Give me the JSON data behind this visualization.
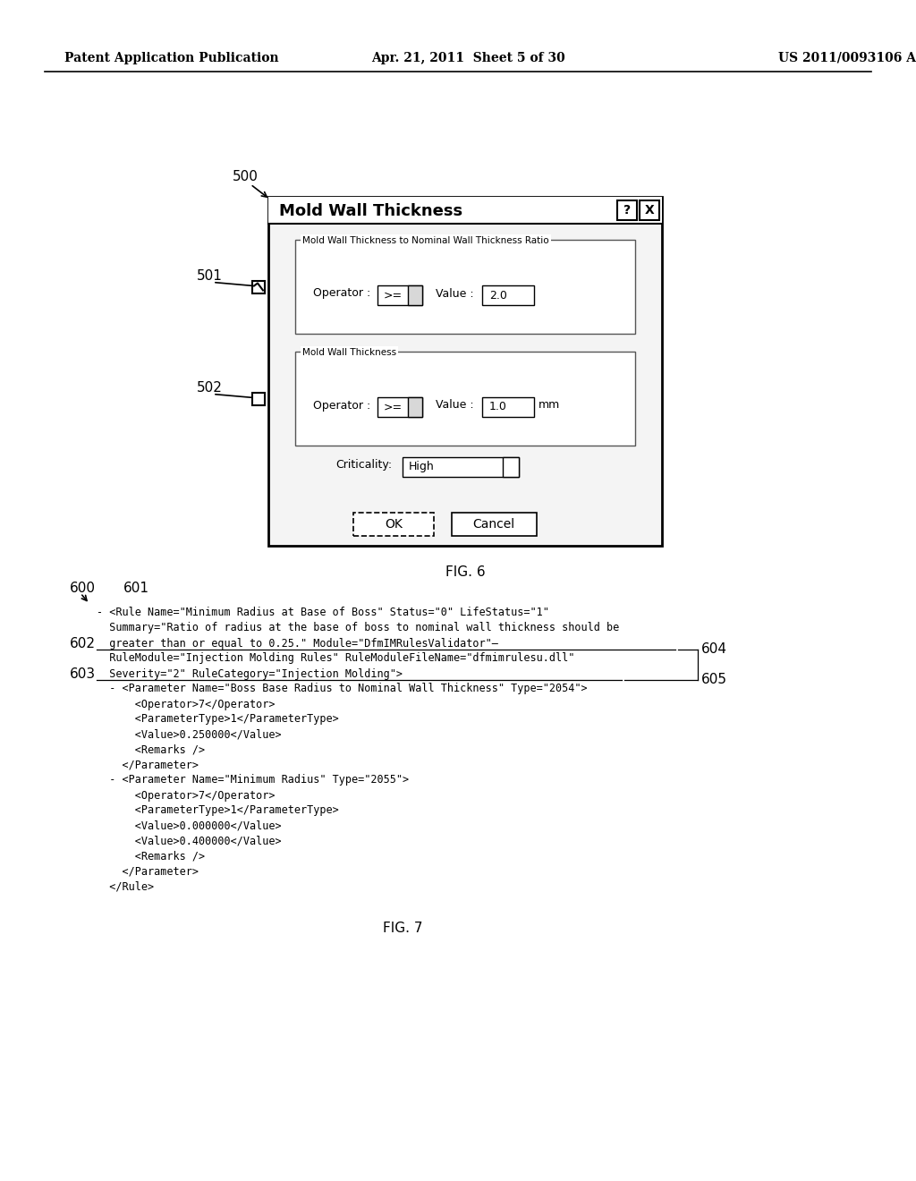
{
  "header_left": "Patent Application Publication",
  "header_mid": "Apr. 21, 2011  Sheet 5 of 30",
  "header_right": "US 2011/0093106 A1",
  "fig6_label": "FIG. 6",
  "fig7_label": "FIG. 7",
  "dialog_title": "Mold Wall Thickness",
  "section1_label": "Mold Wall Thickness to Nominal Wall Thickness Ratio",
  "section2_label": "Mold Wall Thickness",
  "operator_label": "Operator :",
  "value_label": "Value :",
  "value1": "2.0",
  "value2": "1.0",
  "operator_val": ">=",
  "mm_label": "mm",
  "criticality_label": "Criticality:",
  "criticality_val": "High",
  "ok_label": "OK",
  "cancel_label": "Cancel",
  "ref_500": "500",
  "ref_501": "501",
  "ref_502": "502",
  "ref_600": "600",
  "ref_601": "601",
  "ref_602": "602",
  "ref_603": "603",
  "ref_604": "604",
  "ref_605": "605",
  "xml_line0": "- <Rule Name=\"Minimum Radius at Base of Boss\" Status=\"0\" LifeStatus=\"1\"",
  "xml_line1": "  Summary=\"Ratio of radius at the base of boss to nominal wall thickness should be",
  "xml_line2": "  greater than or equal to 0.25.\" Module=\"DfmIMRulesValidator\"—",
  "xml_line3": "  RuleModule=\"Injection Molding Rules\" RuleModuleFileName=\"dfmimrulesu.dll\"",
  "xml_line4": "  Severity=\"2\" RuleCategory=\"Injection Molding\">",
  "xml_line5": "  - <Parameter Name=\"Boss Base Radius to Nominal Wall Thickness\" Type=\"2054\">",
  "xml_line6": "      <Operator>7</Operator>",
  "xml_line7": "      <ParameterType>1</ParameterType>",
  "xml_line8": "      <Value>0.250000</Value>",
  "xml_line9": "      <Remarks />",
  "xml_line10": "    </Parameter>",
  "xml_line11": "  - <Parameter Name=\"Minimum Radius\" Type=\"2055\">",
  "xml_line12": "      <Operator>7</Operator>",
  "xml_line13": "      <ParameterType>1</ParameterType>",
  "xml_line14": "      <Value>0.000000</Value>",
  "xml_line15": "      <Value>0.400000</Value>",
  "xml_line16": "      <Remarks />",
  "xml_line17": "    </Parameter>",
  "xml_line18": "  </Rule>",
  "bg_color": "#ffffff",
  "text_color": "#000000"
}
